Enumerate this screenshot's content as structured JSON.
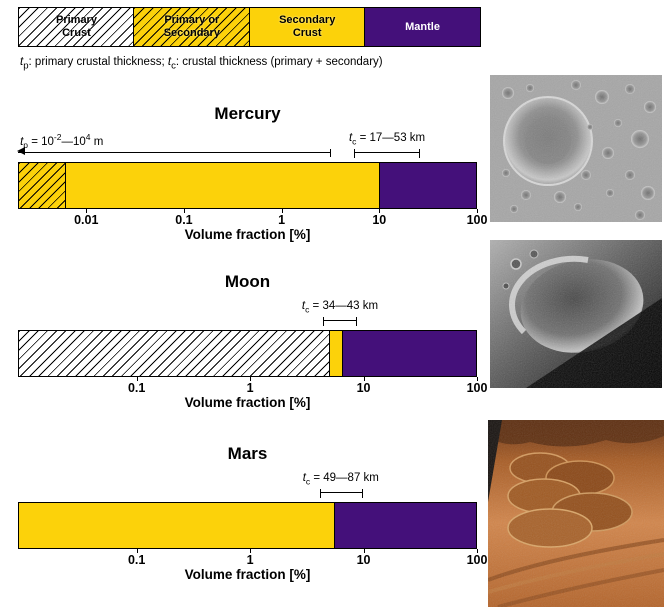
{
  "colors": {
    "secondary_crust": "#FCD20A",
    "mantle": "#44107A",
    "hatch": "#000000",
    "background": "#FFFFFF"
  },
  "legend": {
    "items": [
      {
        "label": "Primary\nCrust",
        "fill": "hatched-white",
        "text_color": "#000000"
      },
      {
        "label": "Primary or\nSecondary",
        "fill": "hatched-yellow",
        "text_color": "#000000"
      },
      {
        "label": "Secondary\nCrust",
        "fill": "yellow",
        "text_color": "#000000"
      },
      {
        "label": "Mantle",
        "fill": "purple",
        "text_color": "#FFFFFF"
      }
    ]
  },
  "caption": "*t*~p~: primary crustal thickness; *t*~c~: crustal thickness (primary + secondary)",
  "chart_data": [
    {
      "type": "bar",
      "orientation": "horizontal-stacked",
      "title": "Mercury",
      "xlabel": "Volume fraction [%]",
      "xscale": "log",
      "xlim": [
        0.002,
        100
      ],
      "ticks": [
        {
          "value": 0.01,
          "label": "0.01"
        },
        {
          "value": 0.1,
          "label": "0.1"
        },
        {
          "value": 1,
          "label": "1"
        },
        {
          "value": 10,
          "label": "10"
        },
        {
          "value": 100,
          "label": "100"
        }
      ],
      "segments": [
        {
          "name": "primary-or-secondary-crust",
          "from": 0.002,
          "to": 0.006,
          "fill": "hatched-yellow"
        },
        {
          "name": "secondary-crust",
          "from": 0.006,
          "to": 10,
          "fill": "yellow"
        },
        {
          "name": "mantle",
          "from": 10,
          "to": 100,
          "fill": "purple"
        }
      ],
      "annotations": [
        {
          "name": "tp",
          "label": "*t*~p~ = 10^-2^—10^4^ m",
          "style": "range-arrow",
          "from": 0.002,
          "to": 3.2,
          "label_at": 0.0021,
          "label_align": "left"
        },
        {
          "name": "tc",
          "label": "*t*~c~ = 17—53 km",
          "style": "bracket",
          "from": 5.5,
          "to": 26,
          "label_at": 12,
          "label_align": "center"
        }
      ]
    },
    {
      "type": "bar",
      "orientation": "horizontal-stacked",
      "title": "Moon",
      "xlabel": "Volume fraction [%]",
      "xscale": "log",
      "xlim": [
        0.009,
        100
      ],
      "ticks": [
        {
          "value": 0.1,
          "label": "0.1"
        },
        {
          "value": 1,
          "label": "1"
        },
        {
          "value": 10,
          "label": "10"
        },
        {
          "value": 100,
          "label": "100"
        }
      ],
      "segments": [
        {
          "name": "primary-crust",
          "from": 0.009,
          "to": 5,
          "fill": "hatched-white"
        },
        {
          "name": "secondary-crust",
          "from": 5,
          "to": 6.5,
          "fill": "yellow"
        },
        {
          "name": "mantle",
          "from": 6.5,
          "to": 100,
          "fill": "purple"
        }
      ],
      "annotations": [
        {
          "name": "tc",
          "label": "*t*~c~ = 34—43 km",
          "style": "bracket",
          "from": 4.4,
          "to": 8.7,
          "label_at": 6.2,
          "label_align": "center"
        }
      ]
    },
    {
      "type": "bar",
      "orientation": "horizontal-stacked",
      "title": "Mars",
      "xlabel": "Volume fraction [%]",
      "xscale": "log",
      "xlim": [
        0.009,
        100
      ],
      "ticks": [
        {
          "value": 0.1,
          "label": "0.1"
        },
        {
          "value": 1,
          "label": "1"
        },
        {
          "value": 10,
          "label": "10"
        },
        {
          "value": 100,
          "label": "100"
        }
      ],
      "segments": [
        {
          "name": "secondary-crust",
          "from": 0.009,
          "to": 5.5,
          "fill": "yellow"
        },
        {
          "name": "mantle",
          "from": 5.5,
          "to": 100,
          "fill": "purple"
        }
      ],
      "annotations": [
        {
          "name": "tc",
          "label": "*t*~c~ = 49—87 km",
          "style": "bracket",
          "from": 4.1,
          "to": 9.8,
          "label_at": 6.3,
          "label_align": "center"
        }
      ]
    }
  ]
}
